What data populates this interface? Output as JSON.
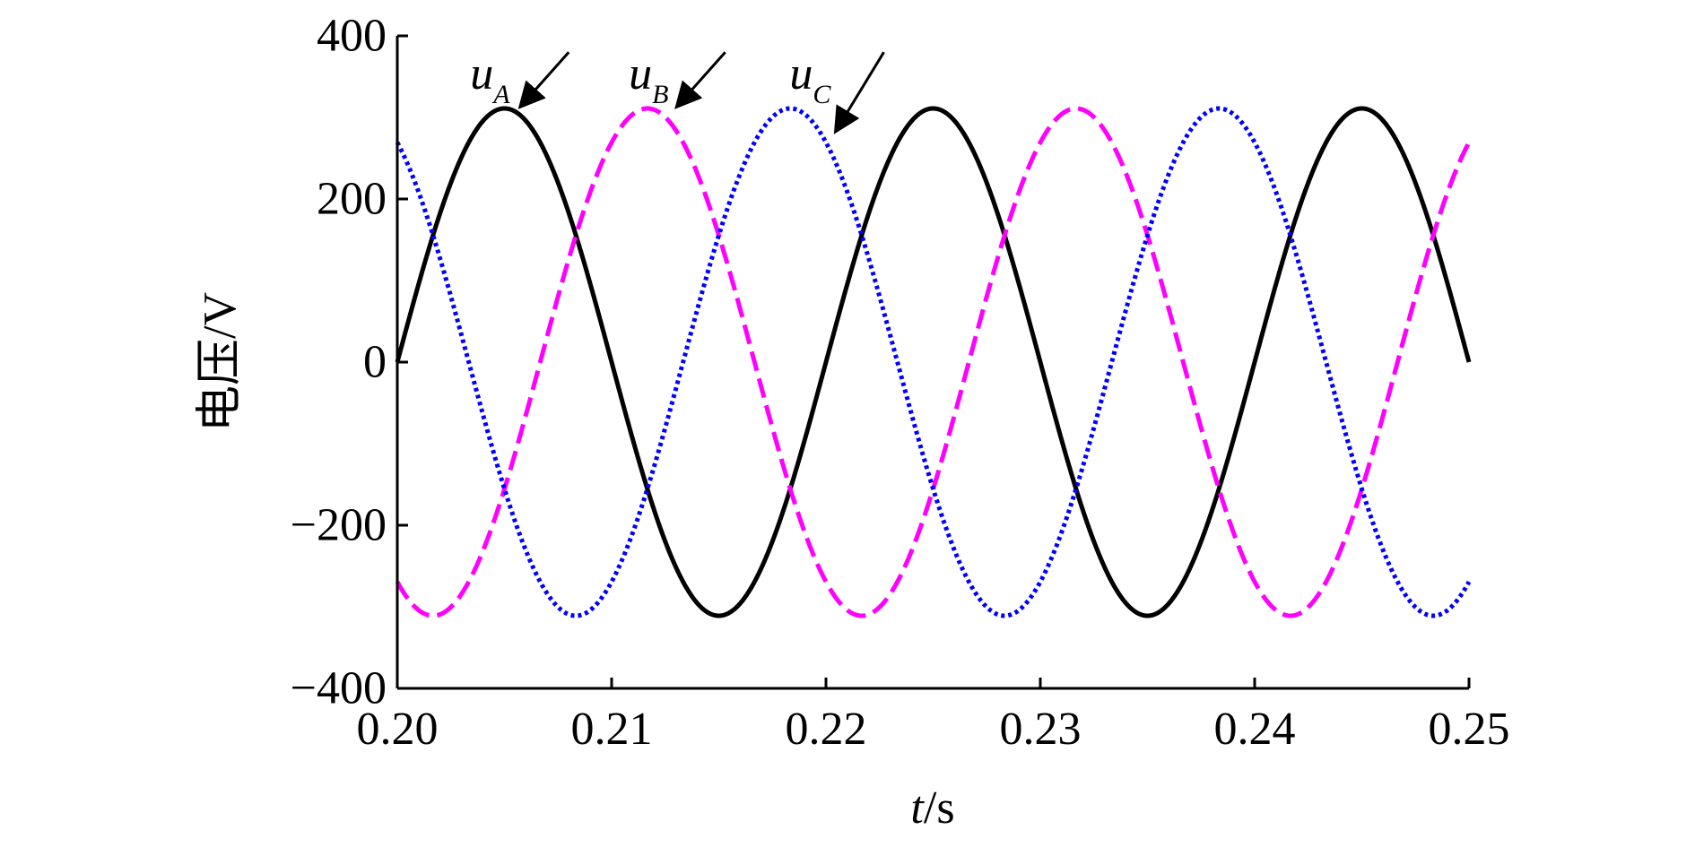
{
  "chart_data": {
    "type": "line",
    "title": "",
    "xlabel": {
      "var": "t",
      "unit": "/s"
    },
    "ylabel": "电压/V",
    "xlim": [
      0.2,
      0.25
    ],
    "ylim": [
      -400,
      400
    ],
    "x_ticks": [
      0.2,
      0.21,
      0.22,
      0.23,
      0.24,
      0.25
    ],
    "x_tick_labels": [
      "0.20",
      "0.21",
      "0.22",
      "0.23",
      "0.24",
      "0.25"
    ],
    "y_ticks": [
      400,
      200,
      0,
      -200,
      -400
    ],
    "y_tick_labels": [
      "400",
      "200",
      "0",
      "−200",
      "−400"
    ],
    "grid": false,
    "frequency_hz": 50,
    "amplitude_v": 311,
    "series": [
      {
        "name": "uA",
        "main": "u",
        "sub": "A",
        "color": "#000000",
        "style": "solid",
        "phase_deg": 0,
        "label_x": 0.2034,
        "label_y": 335,
        "arrow_from": [
          0.208,
          380
        ],
        "arrow_to": [
          0.2058,
          315
        ]
      },
      {
        "name": "uB",
        "main": "u",
        "sub": "B",
        "color": "#ff00ff",
        "style": "dashed",
        "phase_deg": -120,
        "label_x": 0.2108,
        "label_y": 335,
        "arrow_from": [
          0.2153,
          380
        ],
        "arrow_to": [
          0.2131,
          315
        ]
      },
      {
        "name": "uC",
        "main": "u",
        "sub": "C",
        "color": "#0000ff",
        "style": "dotted",
        "phase_deg": 120,
        "label_x": 0.2183,
        "label_y": 335,
        "arrow_from": [
          0.2227,
          380
        ],
        "arrow_to": [
          0.2205,
          285
        ]
      }
    ]
  }
}
